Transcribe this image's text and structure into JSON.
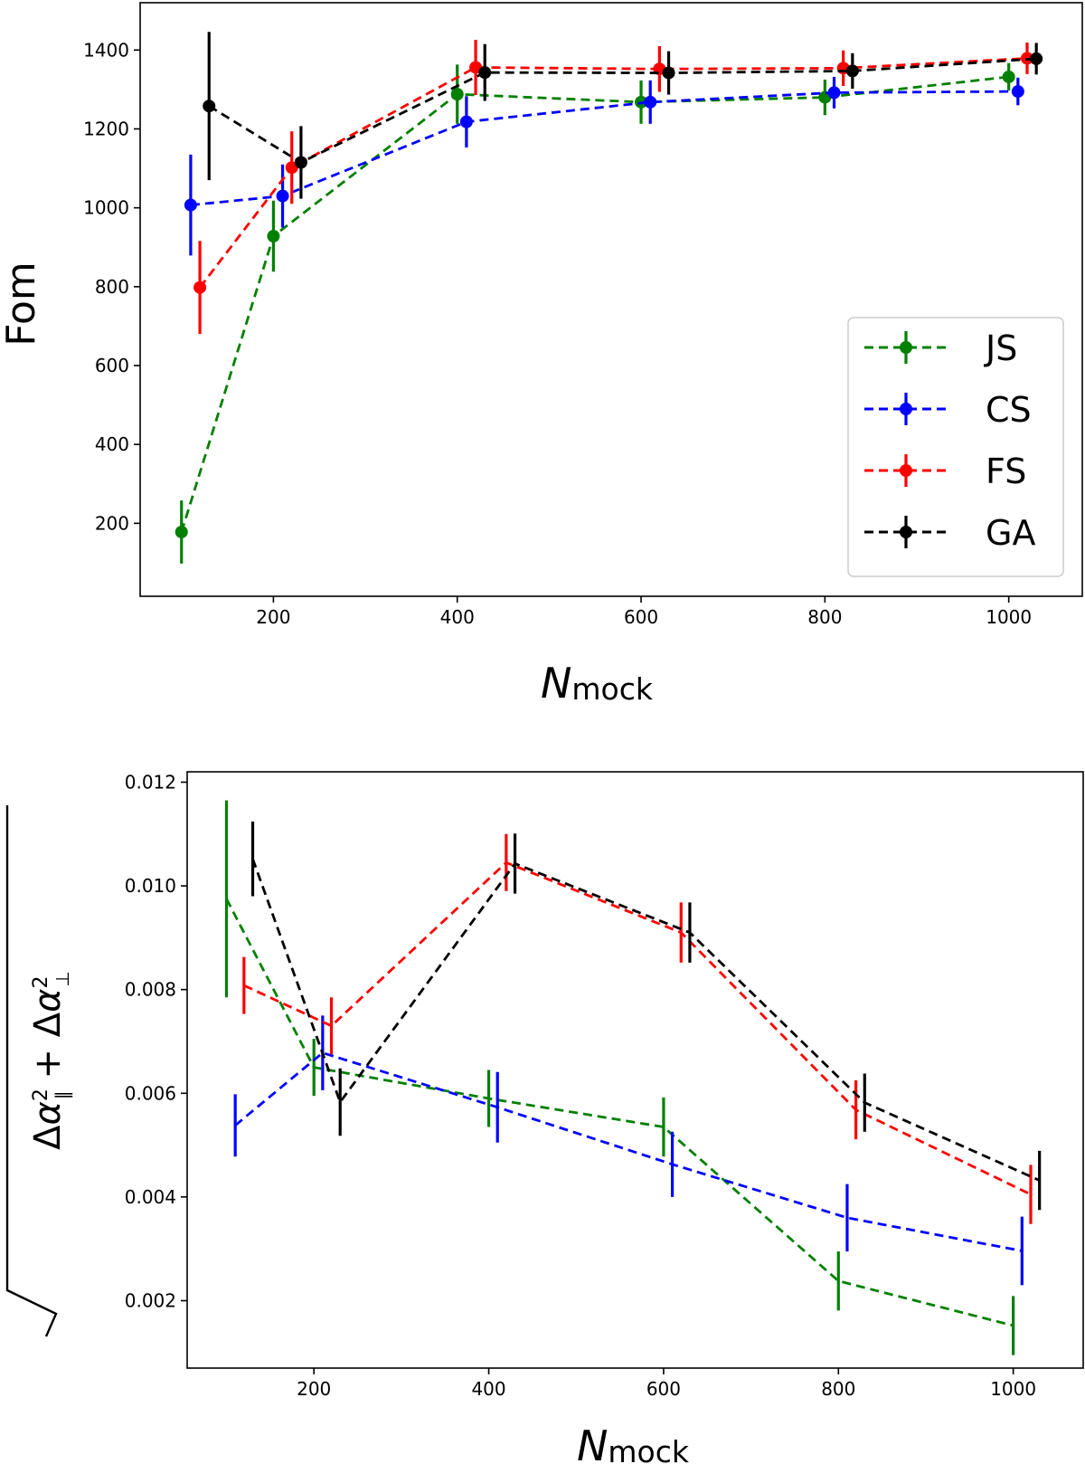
{
  "chart_data": [
    {
      "type": "line",
      "subtype": "errorbar",
      "title": "",
      "xlabel": "N",
      "xlabel_sub": "mock",
      "ylabel": "Fom",
      "xlim": [
        55,
        1080
      ],
      "ylim": [
        15,
        1520
      ],
      "xticks": [
        200,
        400,
        600,
        800,
        1000
      ],
      "yticks": [
        200,
        400,
        600,
        800,
        1000,
        1200,
        1400
      ],
      "ytick_labels": [
        "200",
        "400",
        "600",
        "800",
        "1000",
        "1200",
        "1400"
      ],
      "legend": {
        "position": "lower-right",
        "entries": [
          "JS",
          "CS",
          "FS",
          "GA"
        ]
      },
      "series": [
        {
          "name": "JS",
          "color": "#008000",
          "markers": true,
          "x": [
            100,
            200,
            400,
            600,
            800,
            1000
          ],
          "y": [
            178,
            928,
            1288,
            1268,
            1280,
            1332
          ],
          "err": [
            80,
            90,
            75,
            55,
            45,
            35
          ]
        },
        {
          "name": "CS",
          "color": "#0000ff",
          "markers": true,
          "x": [
            110,
            210,
            410,
            610,
            810,
            1010
          ],
          "y": [
            1007,
            1030,
            1218,
            1268,
            1292,
            1295
          ],
          "err": [
            128,
            80,
            65,
            55,
            40,
            35
          ]
        },
        {
          "name": "FS",
          "color": "#ff0000",
          "markers": true,
          "x": [
            120,
            220,
            420,
            620,
            820,
            1020
          ],
          "y": [
            798,
            1102,
            1356,
            1352,
            1354,
            1379
          ],
          "err": [
            118,
            92,
            70,
            58,
            45,
            40
          ]
        },
        {
          "name": "GA",
          "color": "#000000",
          "markers": true,
          "x": [
            130,
            230,
            430,
            630,
            830,
            1030
          ],
          "y": [
            1258,
            1115,
            1343,
            1342,
            1347,
            1378
          ],
          "err": [
            188,
            92,
            72,
            55,
            45,
            40
          ]
        }
      ]
    },
    {
      "type": "line",
      "subtype": "errorbar",
      "title": "",
      "xlabel": "N",
      "xlabel_sub": "mock",
      "ylabel": "sqrt(Δα∥² + Δα⊥²)",
      "xlim": [
        55,
        1080
      ],
      "ylim": [
        0.0007,
        0.0122
      ],
      "xticks": [
        200,
        400,
        600,
        800,
        1000
      ],
      "yticks": [
        0.002,
        0.004,
        0.006,
        0.008,
        0.01,
        0.012
      ],
      "ytick_labels": [
        "0.002",
        "0.004",
        "0.006",
        "0.008",
        "0.010",
        "0.012"
      ],
      "legend": null,
      "series": [
        {
          "name": "JS",
          "color": "#008000",
          "markers": false,
          "x": [
            100,
            200,
            400,
            600,
            800,
            1000
          ],
          "y": [
            0.00975,
            0.0065,
            0.0059,
            0.00535,
            0.00238,
            0.00152
          ],
          "err": [
            0.0019,
            0.00055,
            0.00055,
            0.00057,
            0.00057,
            0.00057
          ]
        },
        {
          "name": "CS",
          "color": "#0000ff",
          "markers": false,
          "x": [
            110,
            210,
            410,
            610,
            810,
            1010
          ],
          "y": [
            0.00538,
            0.00678,
            0.00573,
            0.00463,
            0.0036,
            0.00296
          ],
          "err": [
            0.0006,
            0.00072,
            0.00068,
            0.00063,
            0.00065,
            0.00066
          ]
        },
        {
          "name": "FS",
          "color": "#ff0000",
          "markers": false,
          "x": [
            120,
            220,
            420,
            620,
            820,
            1020
          ],
          "y": [
            0.00808,
            0.0073,
            0.01045,
            0.0091,
            0.00568,
            0.00405
          ],
          "err": [
            0.00055,
            0.00055,
            0.00055,
            0.00058,
            0.00057,
            0.00057
          ]
        },
        {
          "name": "GA",
          "color": "#000000",
          "markers": false,
          "x": [
            130,
            230,
            430,
            630,
            830,
            1030
          ],
          "y": [
            0.01052,
            0.00583,
            0.01043,
            0.0091,
            0.00582,
            0.00432
          ],
          "err": [
            0.00072,
            0.00065,
            0.00058,
            0.00058,
            0.00056,
            0.00057
          ]
        }
      ]
    }
  ]
}
